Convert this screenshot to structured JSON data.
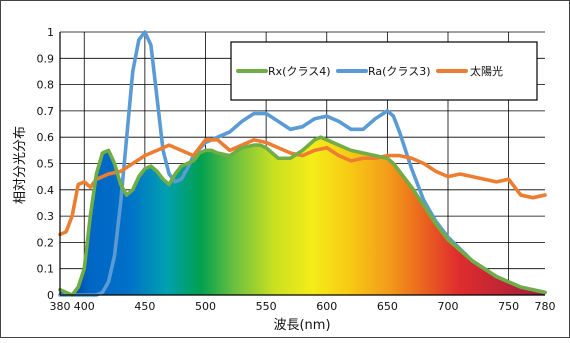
{
  "chart_data": {
    "type": "line",
    "xlabel": "波長(nm)",
    "ylabel": "相対分光分布",
    "xlim": [
      380,
      780
    ],
    "ylim": [
      0,
      1
    ],
    "x_ticks": [
      {
        "value": 380,
        "label": "380"
      },
      {
        "value": 400,
        "label": "400"
      },
      {
        "value": 450,
        "label": "450"
      },
      {
        "value": 500,
        "label": "500"
      },
      {
        "value": 550,
        "label": "550"
      },
      {
        "value": 600,
        "label": "600"
      },
      {
        "value": 650,
        "label": "650"
      },
      {
        "value": 700,
        "label": "700"
      },
      {
        "value": 750,
        "label": "750"
      },
      {
        "value": 780,
        "label": "780"
      }
    ],
    "y_ticks": [
      {
        "value": 0,
        "label": "0"
      },
      {
        "value": 0.1,
        "label": "0.1"
      },
      {
        "value": 0.2,
        "label": "0.2"
      },
      {
        "value": 0.3,
        "label": "0.3"
      },
      {
        "value": 0.4,
        "label": "0.4"
      },
      {
        "value": 0.5,
        "label": "0.5"
      },
      {
        "value": 0.6,
        "label": "0.6"
      },
      {
        "value": 0.7,
        "label": "0.7"
      },
      {
        "value": 0.8,
        "label": "0.8"
      },
      {
        "value": 0.9,
        "label": "0.9"
      },
      {
        "value": 1,
        "label": "1"
      }
    ],
    "grid": true,
    "legend_position": "top-right",
    "series": [
      {
        "name": "Rx(クラス4)",
        "color": "#70ad47",
        "filled_with_visible_spectrum": true,
        "x": [
          380,
          385,
          390,
          395,
          400,
          405,
          410,
          415,
          420,
          425,
          430,
          435,
          440,
          445,
          450,
          455,
          460,
          465,
          470,
          475,
          480,
          485,
          490,
          495,
          500,
          505,
          510,
          520,
          530,
          540,
          545,
          550,
          560,
          570,
          580,
          590,
          595,
          600,
          610,
          620,
          630,
          640,
          650,
          655,
          660,
          670,
          680,
          690,
          700,
          720,
          740,
          760,
          780
        ],
        "y": [
          0.02,
          0.01,
          0.0,
          0.03,
          0.1,
          0.3,
          0.46,
          0.54,
          0.55,
          0.5,
          0.42,
          0.38,
          0.4,
          0.45,
          0.48,
          0.49,
          0.47,
          0.44,
          0.42,
          0.46,
          0.49,
          0.5,
          0.51,
          0.54,
          0.55,
          0.55,
          0.54,
          0.53,
          0.56,
          0.57,
          0.57,
          0.56,
          0.52,
          0.52,
          0.55,
          0.59,
          0.6,
          0.59,
          0.57,
          0.55,
          0.54,
          0.53,
          0.52,
          0.5,
          0.47,
          0.41,
          0.34,
          0.27,
          0.21,
          0.13,
          0.07,
          0.03,
          0.01
        ]
      },
      {
        "name": "Ra(クラス3)",
        "color": "#5b9bd5",
        "x": [
          380,
          390,
          400,
          410,
          415,
          420,
          425,
          430,
          435,
          440,
          445,
          450,
          455,
          460,
          465,
          470,
          475,
          480,
          485,
          490,
          500,
          510,
          520,
          530,
          540,
          550,
          560,
          570,
          580,
          590,
          600,
          610,
          620,
          630,
          640,
          650,
          655,
          660,
          670,
          680,
          690,
          700,
          720,
          740,
          760,
          780
        ],
        "y": [
          0.0,
          0.0,
          0.0,
          0.0,
          0.01,
          0.05,
          0.15,
          0.35,
          0.6,
          0.85,
          0.97,
          1.0,
          0.95,
          0.75,
          0.55,
          0.46,
          0.43,
          0.44,
          0.48,
          0.53,
          0.58,
          0.6,
          0.62,
          0.66,
          0.69,
          0.69,
          0.66,
          0.63,
          0.64,
          0.67,
          0.68,
          0.66,
          0.63,
          0.63,
          0.67,
          0.7,
          0.68,
          0.62,
          0.48,
          0.36,
          0.28,
          0.22,
          0.13,
          0.07,
          0.03,
          0.01
        ]
      },
      {
        "name": "太陽光",
        "color": "#ed7d31",
        "x": [
          380,
          385,
          390,
          395,
          400,
          405,
          410,
          420,
          430,
          440,
          450,
          460,
          470,
          480,
          490,
          500,
          510,
          520,
          530,
          540,
          550,
          560,
          570,
          580,
          590,
          600,
          610,
          620,
          630,
          640,
          650,
          660,
          670,
          680,
          690,
          700,
          710,
          720,
          730,
          740,
          750,
          760,
          770,
          780
        ],
        "y": [
          0.23,
          0.24,
          0.3,
          0.42,
          0.43,
          0.41,
          0.44,
          0.46,
          0.47,
          0.5,
          0.53,
          0.55,
          0.57,
          0.55,
          0.53,
          0.59,
          0.59,
          0.55,
          0.57,
          0.59,
          0.58,
          0.56,
          0.54,
          0.53,
          0.55,
          0.56,
          0.53,
          0.51,
          0.52,
          0.52,
          0.53,
          0.53,
          0.52,
          0.5,
          0.47,
          0.45,
          0.46,
          0.45,
          0.44,
          0.43,
          0.44,
          0.38,
          0.37,
          0.38
        ]
      }
    ]
  }
}
